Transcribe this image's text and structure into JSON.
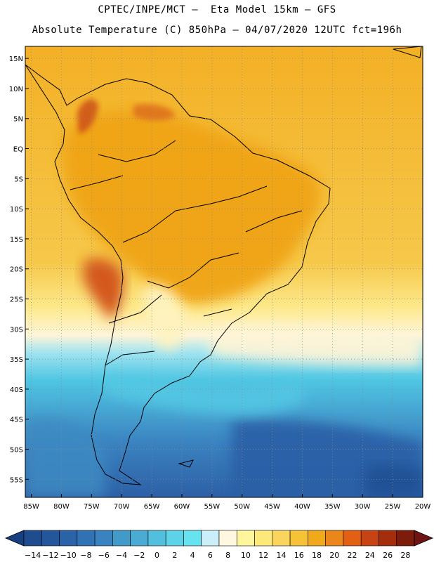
{
  "header": {
    "line1": "CPTEC/INPE/MCT –  Eta Model 15km – GFS",
    "line2": "Absolute Temperature (C) 850hPa – 04/07/2020 12UTC fct=196h"
  },
  "map": {
    "region": "South America",
    "lon_range": [
      -86,
      -20
    ],
    "lat_range": [
      -58,
      17
    ],
    "lat_labels": [
      "15N",
      "10N",
      "5N",
      "EQ",
      "5S",
      "10S",
      "15S",
      "20S",
      "25S",
      "30S",
      "35S",
      "40S",
      "45S",
      "50S",
      "55S"
    ],
    "lat_values": [
      15,
      10,
      5,
      0,
      -5,
      -10,
      -15,
      -20,
      -25,
      -30,
      -35,
      -40,
      -45,
      -50,
      -55
    ],
    "lon_labels": [
      "85W",
      "80W",
      "75W",
      "70W",
      "65W",
      "60W",
      "55W",
      "50W",
      "45W",
      "40W",
      "35W",
      "30W",
      "25W",
      "20W"
    ],
    "lon_values": [
      -85,
      -80,
      -75,
      -70,
      -65,
      -60,
      -55,
      -50,
      -45,
      -40,
      -35,
      -30,
      -25,
      -20
    ],
    "grid": "dotted",
    "field_colors": {
      "ocean_south": "#2f6eb0",
      "ocean_mid": "#4fc3e0",
      "transition": "#fff4cc",
      "tropics": "#f5b922",
      "continent_interior": "#f1a91c",
      "andes_hot": "#d2581a"
    }
  },
  "colorbar": {
    "labels": [
      "-14",
      "-12",
      "-10",
      "-8",
      "-6",
      "-4",
      "-2",
      "0",
      "2",
      "4",
      "6",
      "8",
      "10",
      "12",
      "14",
      "16",
      "18",
      "20",
      "22",
      "24",
      "26",
      "28"
    ],
    "colors": [
      "#1f4b8f",
      "#24569c",
      "#2b63a8",
      "#3172b4",
      "#3a83c0",
      "#429ac9",
      "#4aabd3",
      "#52bfdf",
      "#5dd3ea",
      "#66e3ef",
      "#cbeff8",
      "#fff7e0",
      "#fff59c",
      "#fde87a",
      "#f9d55e",
      "#f6c238",
      "#f1a91c",
      "#eb861d",
      "#e35f14",
      "#c84313",
      "#a32d0d",
      "#7d1c0a"
    ],
    "under_color": "#1a3f80",
    "over_color": "#6e1414"
  }
}
